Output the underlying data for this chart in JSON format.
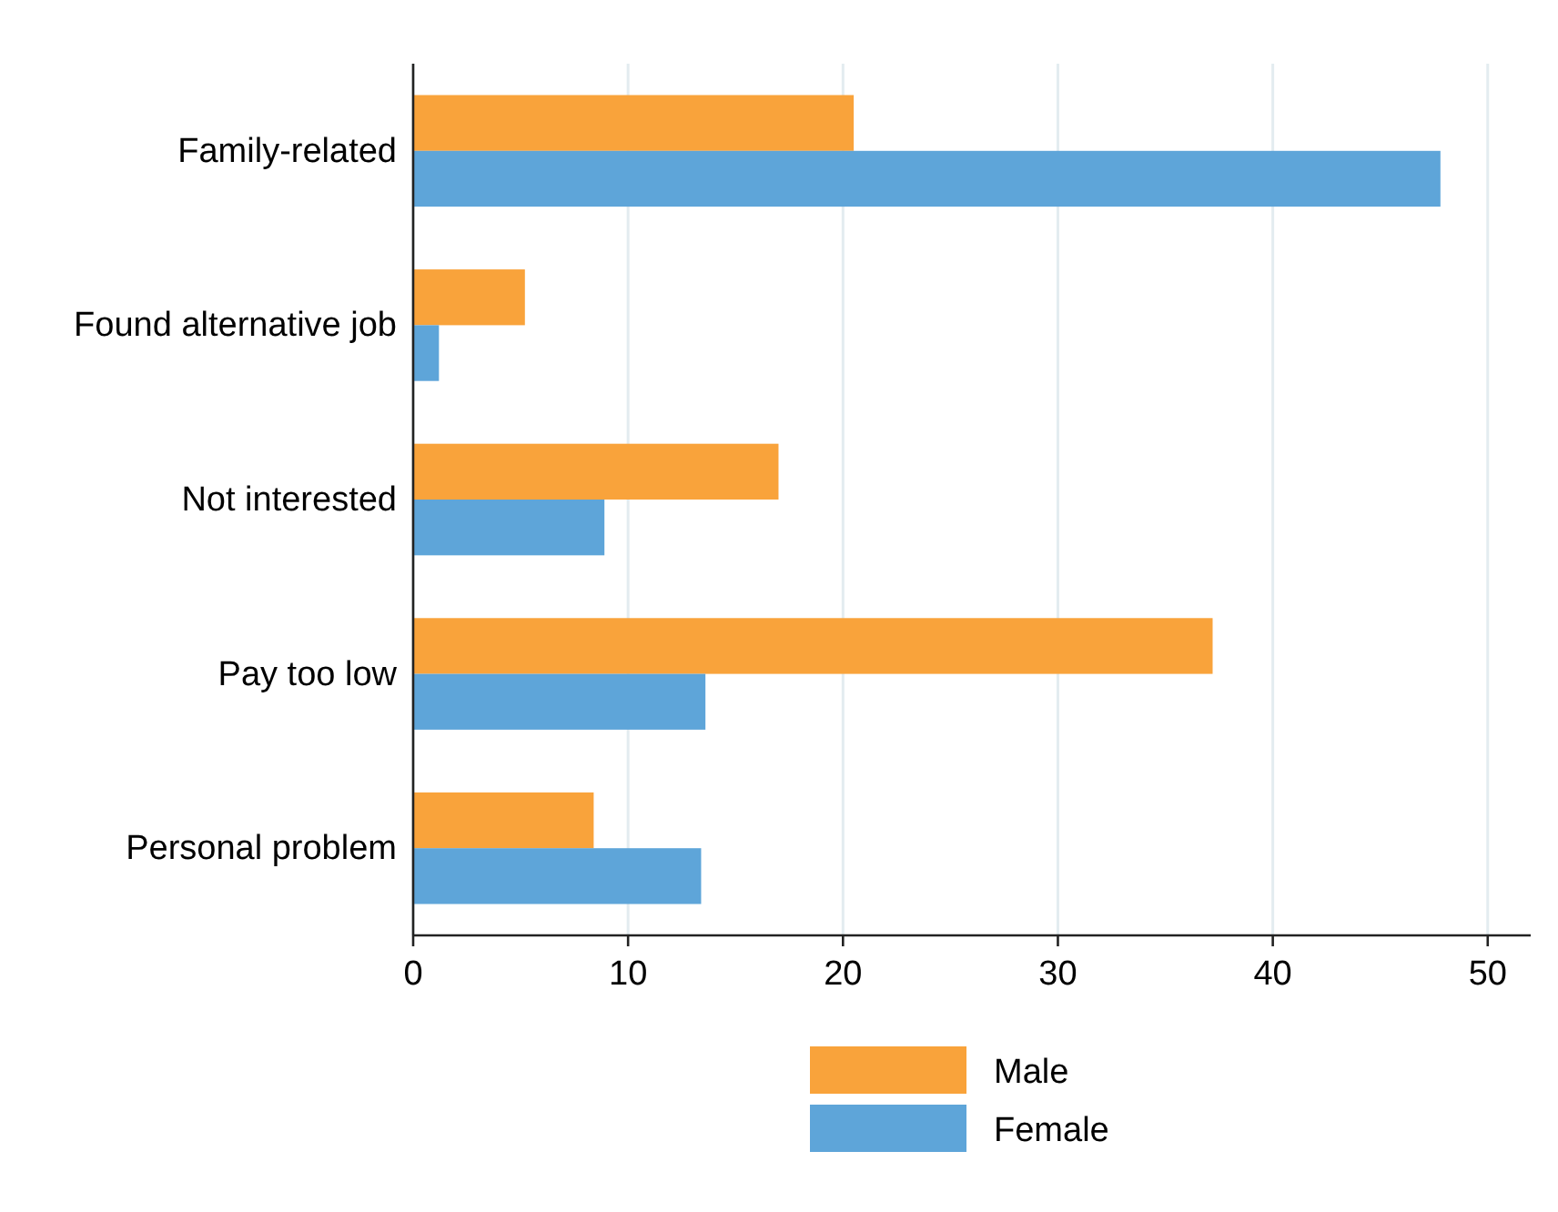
{
  "chart_data": {
    "type": "bar",
    "orientation": "horizontal",
    "categories": [
      "Family-related",
      "Found alternative job",
      "Not interested",
      "Pay too low",
      "Personal problem"
    ],
    "series": [
      {
        "name": "Male",
        "color": "#f9a33b",
        "values": [
          20.5,
          5.2,
          17.0,
          37.2,
          8.4
        ]
      },
      {
        "name": "Female",
        "color": "#5ea5d9",
        "values": [
          47.8,
          1.2,
          8.9,
          13.6,
          13.4
        ]
      }
    ],
    "xlim": [
      0,
      52
    ],
    "xticks": [
      0,
      10,
      20,
      30,
      40,
      50
    ],
    "grid": "x",
    "legend": "bottom"
  }
}
